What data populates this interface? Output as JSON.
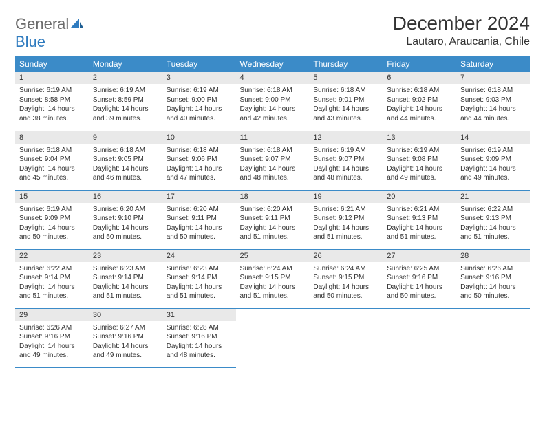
{
  "logo": {
    "word1": "General",
    "word2": "Blue"
  },
  "title": "December 2024",
  "location": "Lautaro, Araucania, Chile",
  "colors": {
    "header_bg": "#3b8bc8",
    "header_text": "#ffffff",
    "daynum_bg": "#e9e9e9",
    "border": "#3b8bc8",
    "logo_gray": "#6b6b6b",
    "logo_blue": "#2f7bbf",
    "text": "#333333",
    "background": "#ffffff"
  },
  "weekdays": [
    "Sunday",
    "Monday",
    "Tuesday",
    "Wednesday",
    "Thursday",
    "Friday",
    "Saturday"
  ],
  "days": [
    {
      "n": 1,
      "sr": "6:19 AM",
      "ss": "8:58 PM",
      "dl": "14 hours and 38 minutes."
    },
    {
      "n": 2,
      "sr": "6:19 AM",
      "ss": "8:59 PM",
      "dl": "14 hours and 39 minutes."
    },
    {
      "n": 3,
      "sr": "6:19 AM",
      "ss": "9:00 PM",
      "dl": "14 hours and 40 minutes."
    },
    {
      "n": 4,
      "sr": "6:18 AM",
      "ss": "9:00 PM",
      "dl": "14 hours and 42 minutes."
    },
    {
      "n": 5,
      "sr": "6:18 AM",
      "ss": "9:01 PM",
      "dl": "14 hours and 43 minutes."
    },
    {
      "n": 6,
      "sr": "6:18 AM",
      "ss": "9:02 PM",
      "dl": "14 hours and 44 minutes."
    },
    {
      "n": 7,
      "sr": "6:18 AM",
      "ss": "9:03 PM",
      "dl": "14 hours and 44 minutes."
    },
    {
      "n": 8,
      "sr": "6:18 AM",
      "ss": "9:04 PM",
      "dl": "14 hours and 45 minutes."
    },
    {
      "n": 9,
      "sr": "6:18 AM",
      "ss": "9:05 PM",
      "dl": "14 hours and 46 minutes."
    },
    {
      "n": 10,
      "sr": "6:18 AM",
      "ss": "9:06 PM",
      "dl": "14 hours and 47 minutes."
    },
    {
      "n": 11,
      "sr": "6:18 AM",
      "ss": "9:07 PM",
      "dl": "14 hours and 48 minutes."
    },
    {
      "n": 12,
      "sr": "6:19 AM",
      "ss": "9:07 PM",
      "dl": "14 hours and 48 minutes."
    },
    {
      "n": 13,
      "sr": "6:19 AM",
      "ss": "9:08 PM",
      "dl": "14 hours and 49 minutes."
    },
    {
      "n": 14,
      "sr": "6:19 AM",
      "ss": "9:09 PM",
      "dl": "14 hours and 49 minutes."
    },
    {
      "n": 15,
      "sr": "6:19 AM",
      "ss": "9:09 PM",
      "dl": "14 hours and 50 minutes."
    },
    {
      "n": 16,
      "sr": "6:20 AM",
      "ss": "9:10 PM",
      "dl": "14 hours and 50 minutes."
    },
    {
      "n": 17,
      "sr": "6:20 AM",
      "ss": "9:11 PM",
      "dl": "14 hours and 50 minutes."
    },
    {
      "n": 18,
      "sr": "6:20 AM",
      "ss": "9:11 PM",
      "dl": "14 hours and 51 minutes."
    },
    {
      "n": 19,
      "sr": "6:21 AM",
      "ss": "9:12 PM",
      "dl": "14 hours and 51 minutes."
    },
    {
      "n": 20,
      "sr": "6:21 AM",
      "ss": "9:13 PM",
      "dl": "14 hours and 51 minutes."
    },
    {
      "n": 21,
      "sr": "6:22 AM",
      "ss": "9:13 PM",
      "dl": "14 hours and 51 minutes."
    },
    {
      "n": 22,
      "sr": "6:22 AM",
      "ss": "9:14 PM",
      "dl": "14 hours and 51 minutes."
    },
    {
      "n": 23,
      "sr": "6:23 AM",
      "ss": "9:14 PM",
      "dl": "14 hours and 51 minutes."
    },
    {
      "n": 24,
      "sr": "6:23 AM",
      "ss": "9:14 PM",
      "dl": "14 hours and 51 minutes."
    },
    {
      "n": 25,
      "sr": "6:24 AM",
      "ss": "9:15 PM",
      "dl": "14 hours and 51 minutes."
    },
    {
      "n": 26,
      "sr": "6:24 AM",
      "ss": "9:15 PM",
      "dl": "14 hours and 50 minutes."
    },
    {
      "n": 27,
      "sr": "6:25 AM",
      "ss": "9:16 PM",
      "dl": "14 hours and 50 minutes."
    },
    {
      "n": 28,
      "sr": "6:26 AM",
      "ss": "9:16 PM",
      "dl": "14 hours and 50 minutes."
    },
    {
      "n": 29,
      "sr": "6:26 AM",
      "ss": "9:16 PM",
      "dl": "14 hours and 49 minutes."
    },
    {
      "n": 30,
      "sr": "6:27 AM",
      "ss": "9:16 PM",
      "dl": "14 hours and 49 minutes."
    },
    {
      "n": 31,
      "sr": "6:28 AM",
      "ss": "9:16 PM",
      "dl": "14 hours and 48 minutes."
    }
  ],
  "labels": {
    "sunrise": "Sunrise:",
    "sunset": "Sunset:",
    "daylight": "Daylight:"
  },
  "layout": {
    "start_weekday": 0,
    "rows": 5,
    "cols": 7
  }
}
